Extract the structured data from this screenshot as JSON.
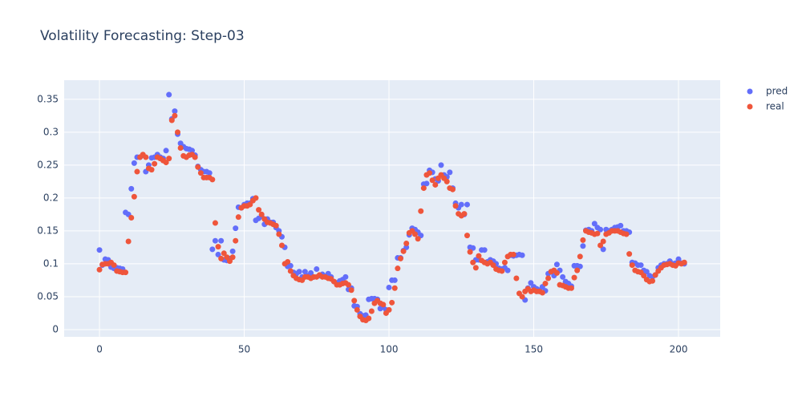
{
  "chart_data": {
    "type": "scatter",
    "title": "Volatility Forecasting: Step-03",
    "x": [
      0,
      1,
      2,
      3,
      4,
      5,
      6,
      7,
      8,
      9,
      10,
      11,
      12,
      13,
      14,
      15,
      16,
      17,
      18,
      19,
      20,
      21,
      22,
      23,
      24,
      25,
      26,
      27,
      28,
      29,
      30,
      31,
      32,
      33,
      34,
      35,
      36,
      37,
      38,
      39,
      40,
      41,
      42,
      43,
      44,
      45,
      46,
      47,
      48,
      49,
      50,
      51,
      52,
      53,
      54,
      55,
      56,
      57,
      58,
      59,
      60,
      61,
      62,
      63,
      64,
      65,
      66,
      67,
      68,
      69,
      70,
      71,
      72,
      73,
      74,
      75,
      76,
      77,
      78,
      79,
      80,
      81,
      82,
      83,
      84,
      85,
      86,
      87,
      88,
      89,
      90,
      91,
      92,
      93,
      94,
      95,
      96,
      97,
      98,
      99,
      100,
      101,
      102,
      103,
      104,
      105,
      106,
      107,
      108,
      109,
      110,
      111,
      112,
      113,
      114,
      115,
      116,
      117,
      118,
      119,
      120,
      121,
      122,
      123,
      124,
      125,
      126,
      127,
      128,
      129,
      130,
      131,
      132,
      133,
      134,
      135,
      136,
      137,
      138,
      139,
      140,
      141,
      142,
      143,
      144,
      145,
      146,
      147,
      148,
      149,
      150,
      151,
      152,
      153,
      154,
      155,
      156,
      157,
      158,
      159,
      160,
      161,
      162,
      163,
      164,
      165,
      166,
      167,
      168,
      169,
      170,
      171,
      172,
      173,
      174,
      175,
      176,
      177,
      178,
      179,
      180,
      181,
      182,
      183,
      184,
      185,
      186,
      187,
      188,
      189,
      190,
      191,
      192,
      193,
      194,
      195,
      196,
      197,
      198,
      199,
      200,
      201,
      202
    ],
    "series": [
      {
        "name": "pred",
        "color": "#636efa",
        "values": [
          0.121,
          0.098,
          0.107,
          0.106,
          0.095,
          0.093,
          0.094,
          0.093,
          0.092,
          0.178,
          0.175,
          0.214,
          0.253,
          0.262,
          0.262,
          0.265,
          0.24,
          0.25,
          0.261,
          0.262,
          0.266,
          0.262,
          0.26,
          0.272,
          0.357,
          0.32,
          0.332,
          0.297,
          0.283,
          0.278,
          0.275,
          0.274,
          0.272,
          0.265,
          0.248,
          0.243,
          0.24,
          0.24,
          0.238,
          0.122,
          0.135,
          0.114,
          0.135,
          0.106,
          0.105,
          0.108,
          0.119,
          0.154,
          0.186,
          0.185,
          0.19,
          0.192,
          0.192,
          0.199,
          0.166,
          0.169,
          0.172,
          0.16,
          0.168,
          0.163,
          0.163,
          0.155,
          0.15,
          0.141,
          0.125,
          0.096,
          0.097,
          0.087,
          0.085,
          0.088,
          0.08,
          0.088,
          0.082,
          0.086,
          0.08,
          0.092,
          0.082,
          0.084,
          0.081,
          0.085,
          0.08,
          0.073,
          0.071,
          0.074,
          0.076,
          0.08,
          0.061,
          0.063,
          0.036,
          0.035,
          0.024,
          0.021,
          0.022,
          0.046,
          0.047,
          0.047,
          0.046,
          0.032,
          0.034,
          0.03,
          0.064,
          0.075,
          0.075,
          0.109,
          0.109,
          0.12,
          0.125,
          0.144,
          0.154,
          0.152,
          0.148,
          0.143,
          0.221,
          0.222,
          0.242,
          0.239,
          0.229,
          0.226,
          0.25,
          0.235,
          0.232,
          0.239,
          0.215,
          0.192,
          0.185,
          0.19,
          0.175,
          0.19,
          0.125,
          0.124,
          0.106,
          0.106,
          0.121,
          0.121,
          0.103,
          0.106,
          0.104,
          0.1,
          0.093,
          0.092,
          0.094,
          0.09,
          0.113,
          0.112,
          0.113,
          0.114,
          0.113,
          0.045,
          0.063,
          0.071,
          0.065,
          0.062,
          0.06,
          0.065,
          0.059,
          0.085,
          0.088,
          0.082,
          0.099,
          0.09,
          0.08,
          0.073,
          0.07,
          0.066,
          0.097,
          0.097,
          0.096,
          0.127,
          0.151,
          0.152,
          0.15,
          0.161,
          0.155,
          0.152,
          0.122,
          0.152,
          0.15,
          0.152,
          0.155,
          0.156,
          0.158,
          0.15,
          0.15,
          0.148,
          0.102,
          0.101,
          0.098,
          0.098,
          0.09,
          0.088,
          0.082,
          0.08,
          0.083,
          0.094,
          0.098,
          0.1,
          0.1,
          0.104,
          0.1,
          0.101,
          0.107,
          0.101,
          0.1
        ]
      },
      {
        "name": "real",
        "color": "#ef553b",
        "values": [
          0.091,
          0.099,
          0.1,
          0.1,
          0.102,
          0.098,
          0.089,
          0.088,
          0.087,
          0.087,
          0.134,
          0.17,
          0.202,
          0.24,
          0.262,
          0.266,
          0.262,
          0.245,
          0.243,
          0.252,
          0.262,
          0.26,
          0.257,
          0.254,
          0.26,
          0.318,
          0.325,
          0.3,
          0.276,
          0.264,
          0.262,
          0.265,
          0.266,
          0.262,
          0.247,
          0.238,
          0.231,
          0.231,
          0.231,
          0.228,
          0.162,
          0.126,
          0.108,
          0.116,
          0.11,
          0.104,
          0.11,
          0.135,
          0.171,
          0.185,
          0.188,
          0.188,
          0.19,
          0.196,
          0.2,
          0.182,
          0.175,
          0.168,
          0.163,
          0.162,
          0.16,
          0.158,
          0.145,
          0.128,
          0.1,
          0.103,
          0.089,
          0.082,
          0.078,
          0.076,
          0.075,
          0.08,
          0.08,
          0.078,
          0.08,
          0.08,
          0.083,
          0.08,
          0.08,
          0.078,
          0.077,
          0.073,
          0.068,
          0.068,
          0.07,
          0.071,
          0.068,
          0.06,
          0.044,
          0.03,
          0.02,
          0.015,
          0.014,
          0.017,
          0.028,
          0.04,
          0.044,
          0.04,
          0.038,
          0.025,
          0.03,
          0.041,
          0.063,
          0.093,
          0.108,
          0.119,
          0.131,
          0.147,
          0.15,
          0.145,
          0.138,
          0.18,
          0.215,
          0.235,
          0.238,
          0.227,
          0.22,
          0.23,
          0.235,
          0.23,
          0.225,
          0.215,
          0.213,
          0.188,
          0.176,
          0.173,
          0.176,
          0.143,
          0.118,
          0.102,
          0.094,
          0.112,
          0.105,
          0.102,
          0.1,
          0.102,
          0.098,
          0.092,
          0.09,
          0.089,
          0.102,
          0.111,
          0.114,
          0.114,
          0.078,
          0.055,
          0.05,
          0.058,
          0.062,
          0.058,
          0.06,
          0.058,
          0.058,
          0.056,
          0.07,
          0.078,
          0.088,
          0.09,
          0.086,
          0.068,
          0.067,
          0.065,
          0.063,
          0.063,
          0.079,
          0.09,
          0.111,
          0.136,
          0.15,
          0.148,
          0.147,
          0.145,
          0.146,
          0.128,
          0.134,
          0.145,
          0.147,
          0.15,
          0.15,
          0.15,
          0.148,
          0.146,
          0.145,
          0.115,
          0.098,
          0.09,
          0.088,
          0.087,
          0.082,
          0.076,
          0.073,
          0.074,
          0.083,
          0.089,
          0.094,
          0.098,
          0.099,
          0.1,
          0.098,
          0.097,
          0.101,
          0.1,
          0.102
        ]
      }
    ],
    "xlim": [
      -12.2,
      214.4
    ],
    "ylim": [
      -0.011,
      0.379
    ],
    "xticks": [
      0,
      50,
      100,
      150,
      200
    ],
    "yticks": [
      0,
      0.05,
      0.1,
      0.15,
      0.2,
      0.25,
      0.3,
      0.35
    ],
    "grid": true,
    "legend": "top-right"
  }
}
